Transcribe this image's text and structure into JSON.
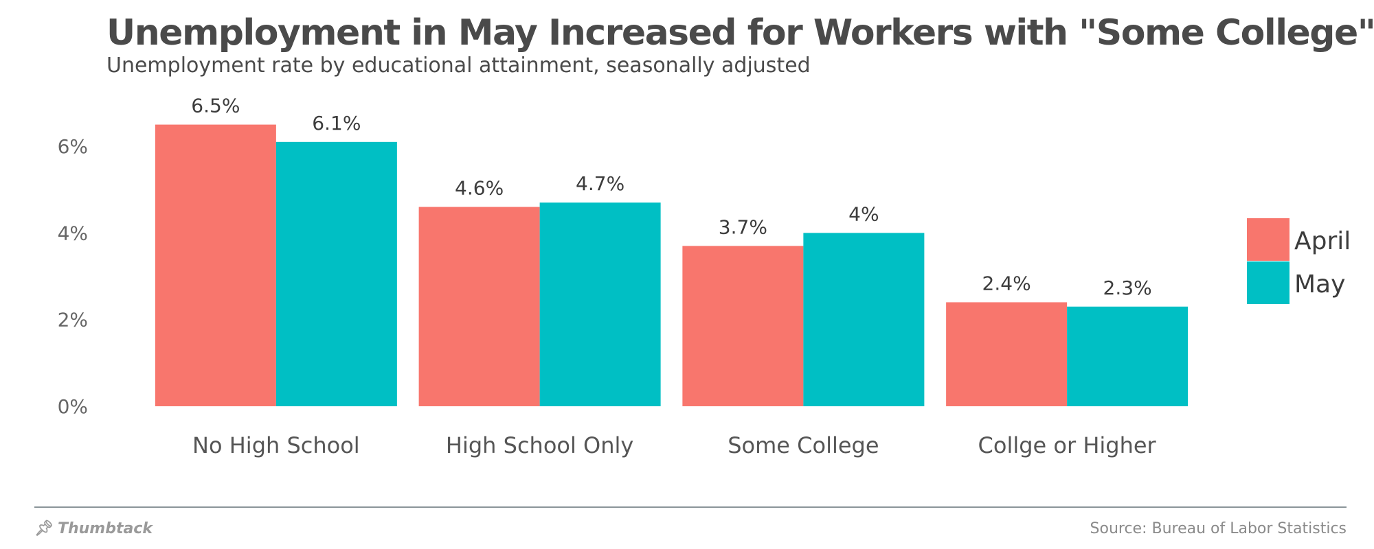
{
  "chart_data": {
    "type": "bar",
    "title": "Unemployment in May Increased for Workers with \"Some College\"",
    "subtitle": "Unemployment rate by educational attainment, seasonally adjusted",
    "categories": [
      "No High School",
      "High School Only",
      "Some College",
      "Collge or Higher"
    ],
    "series": [
      {
        "name": "April",
        "values": [
          6.5,
          4.6,
          3.7,
          2.4
        ],
        "labels": [
          "6.5%",
          "4.6%",
          "3.7%",
          "2.4%"
        ],
        "color": "#f8766d"
      },
      {
        "name": "May",
        "values": [
          6.1,
          4.7,
          4.0,
          2.3
        ],
        "labels": [
          "6.1%",
          "4.7%",
          "4%",
          "2.3%"
        ],
        "color": "#00bfc4"
      }
    ],
    "yticks": [
      0,
      2,
      4,
      6
    ],
    "ytick_labels": [
      "0%",
      "2%",
      "4%",
      "6%"
    ],
    "ylim": [
      0,
      7
    ],
    "xlabel": "",
    "ylabel": "",
    "grid": false,
    "legend_position": "right"
  },
  "footer": {
    "brand": "Thumbtack",
    "brand_icon": "pushpin-icon",
    "source": "Source: Bureau of Labor Statistics"
  }
}
